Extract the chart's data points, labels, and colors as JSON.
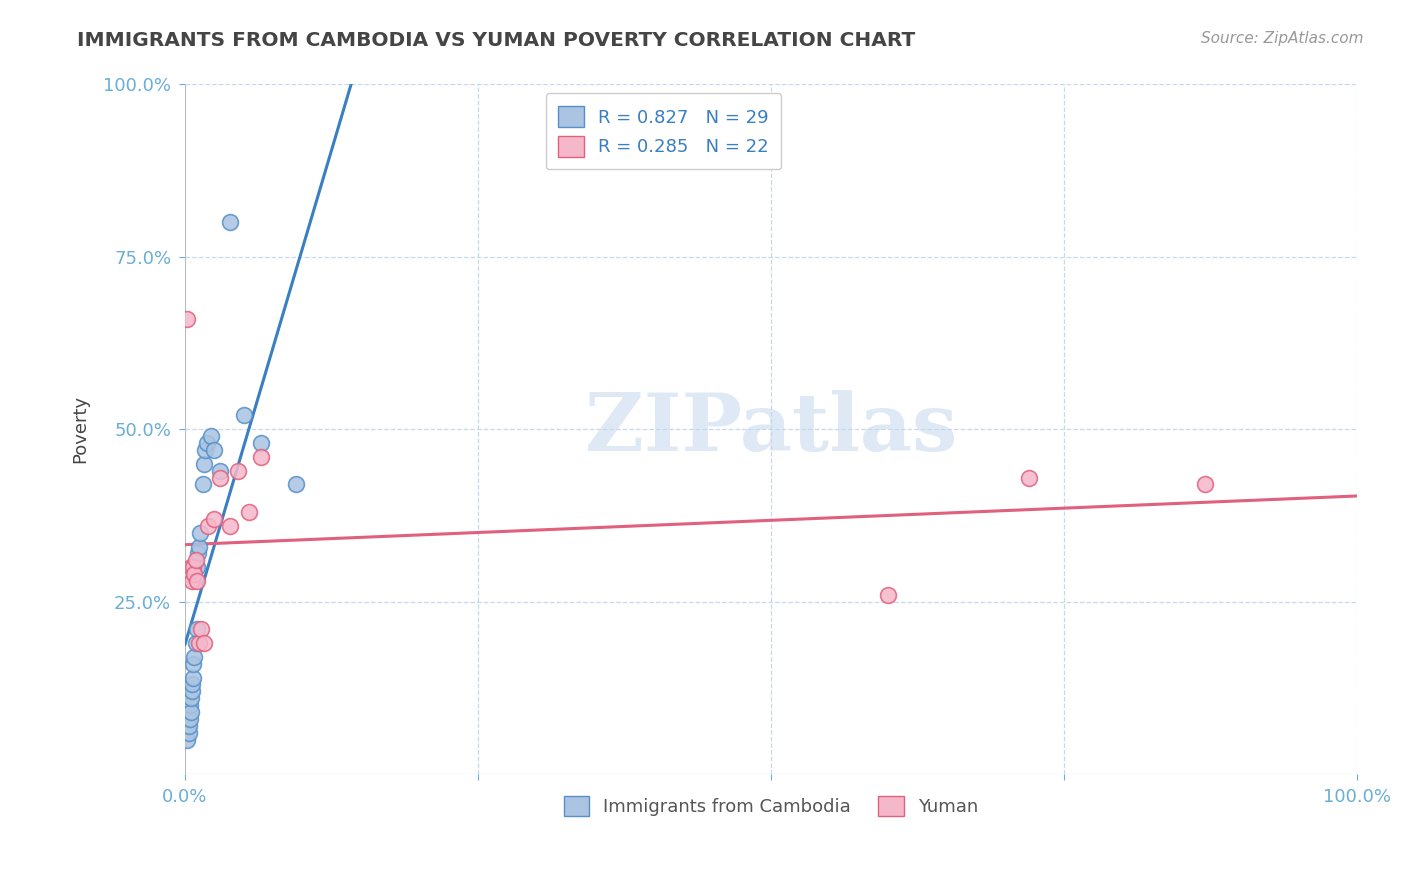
{
  "title": "IMMIGRANTS FROM CAMBODIA VS YUMAN POVERTY CORRELATION CHART",
  "source": "Source: ZipAtlas.com",
  "ylabel": "Poverty",
  "watermark": "ZIPatlas",
  "xlim": [
    0,
    1.0
  ],
  "ylim": [
    0,
    1.0
  ],
  "series1_name": "Immigrants from Cambodia",
  "series1_R": "0.827",
  "series1_N": "29",
  "series1_color": "#aac4e2",
  "series1_edge_color": "#5590c8",
  "series1_line_color": "#3a7fc1",
  "series2_name": "Yuman",
  "series2_R": "0.285",
  "series2_N": "22",
  "series2_color": "#f5b8ca",
  "series2_edge_color": "#e0607e",
  "series2_line_color": "#e0607e",
  "legend_text_color": "#3a7fc1",
  "title_color": "#454545",
  "axis_color": "#6aaed6",
  "grid_color": "#c8d8ec",
  "background_color": "#ffffff",
  "cambodia_x": [
    0.002,
    0.003,
    0.003,
    0.004,
    0.004,
    0.005,
    0.005,
    0.006,
    0.006,
    0.007,
    0.007,
    0.008,
    0.009,
    0.01,
    0.01,
    0.011,
    0.012,
    0.013,
    0.015,
    0.016,
    0.017,
    0.019,
    0.022,
    0.025,
    0.03,
    0.038,
    0.05,
    0.065,
    0.095
  ],
  "cambodia_y": [
    0.05,
    0.06,
    0.07,
    0.08,
    0.1,
    0.09,
    0.11,
    0.12,
    0.13,
    0.14,
    0.16,
    0.17,
    0.19,
    0.21,
    0.3,
    0.32,
    0.33,
    0.35,
    0.42,
    0.45,
    0.47,
    0.48,
    0.49,
    0.47,
    0.44,
    0.8,
    0.52,
    0.48,
    0.42
  ],
  "yuman_x": [
    0.002,
    0.003,
    0.004,
    0.005,
    0.006,
    0.007,
    0.008,
    0.009,
    0.01,
    0.012,
    0.014,
    0.016,
    0.02,
    0.025,
    0.03,
    0.038,
    0.045,
    0.055,
    0.065,
    0.6,
    0.72,
    0.87
  ],
  "yuman_y": [
    0.66,
    0.29,
    0.29,
    0.3,
    0.28,
    0.3,
    0.29,
    0.31,
    0.28,
    0.19,
    0.21,
    0.19,
    0.36,
    0.37,
    0.43,
    0.36,
    0.44,
    0.38,
    0.46,
    0.26,
    0.43,
    0.42
  ]
}
